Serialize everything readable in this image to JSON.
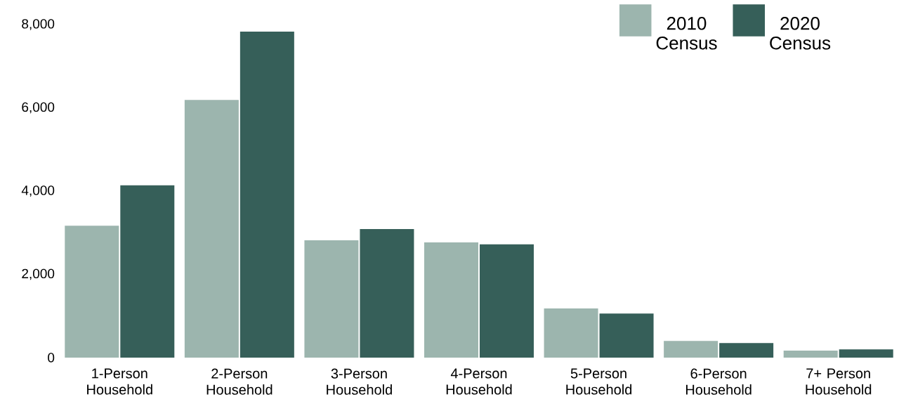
{
  "chart_data": {
    "type": "bar",
    "categories": [
      "1-Person Household",
      "2-Person Household",
      "3-Person Household",
      "4-Person Household",
      "5-Person Household",
      "6-Person Household",
      "7+ Person Household"
    ],
    "series": [
      {
        "name": "2010 Census",
        "color": "#9cb5ae",
        "values": [
          3170,
          6190,
          2820,
          2770,
          1180,
          400,
          170
        ]
      },
      {
        "name": "2020 Census",
        "color": "#365f59",
        "values": [
          4140,
          7830,
          3090,
          2720,
          1060,
          350,
          200
        ]
      }
    ],
    "ylim": [
      0,
      8000
    ],
    "yticks": [
      {
        "value": 0,
        "label": "0"
      },
      {
        "value": 2000,
        "label": "2,000"
      },
      {
        "value": 4000,
        "label": "4,000"
      },
      {
        "value": 6000,
        "label": "6,000"
      },
      {
        "value": 8000,
        "label": "8,000"
      }
    ],
    "grid": false,
    "legend": "top right"
  }
}
